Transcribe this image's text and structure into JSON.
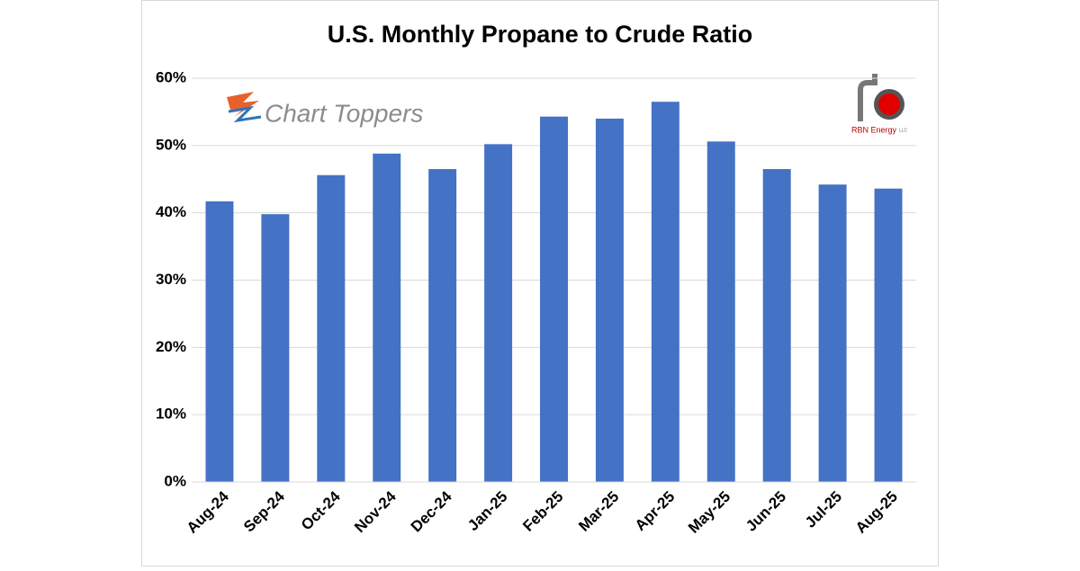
{
  "chart_data": {
    "type": "bar",
    "title": "U.S. Monthly Propane to Crude Ratio",
    "categories": [
      "Aug-24",
      "Sep-24",
      "Oct-24",
      "Nov-24",
      "Dec-24",
      "Jan-25",
      "Feb-25",
      "Mar-25",
      "Apr-25",
      "May-25",
      "Jun-25",
      "Jul-25",
      "Aug-25"
    ],
    "values": [
      41.7,
      39.8,
      45.6,
      48.8,
      46.5,
      50.2,
      54.3,
      54.0,
      56.5,
      50.6,
      46.5,
      44.2,
      43.6
    ],
    "color": "#4472c4",
    "ylim": [
      0,
      60
    ],
    "yticks": [
      {
        "value": 0,
        "label": "0%"
      },
      {
        "value": 10,
        "label": "10%"
      },
      {
        "value": 20,
        "label": "20%"
      },
      {
        "value": 30,
        "label": "30%"
      },
      {
        "value": 40,
        "label": "40%"
      },
      {
        "value": 50,
        "label": "50%"
      },
      {
        "value": 60,
        "label": "60%"
      }
    ],
    "grid": true,
    "annotations": [
      "Chart Toppers",
      "RBN Energy",
      "LLC"
    ]
  }
}
